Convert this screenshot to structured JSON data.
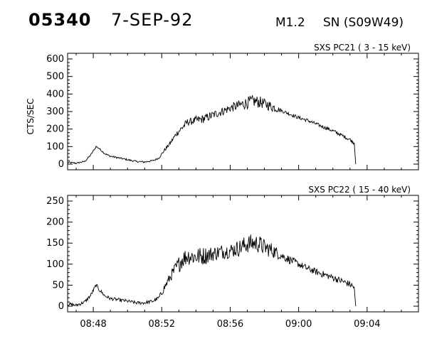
{
  "header": {
    "event_id": "05340",
    "date": "7-SEP-92",
    "flare_class": "M1.2",
    "location": "SN (S09W49)"
  },
  "chart_data": [
    {
      "type": "line",
      "title": "SXS PC21  (  3 - 15 keV)",
      "ylabel": "CTS/SEC",
      "xlabel": "",
      "xlim": [
        "08:46:30",
        "09:07:00"
      ],
      "ylim": [
        0,
        600
      ],
      "y_ticks": [
        "0",
        "100",
        "200",
        "300",
        "400",
        "500",
        "600"
      ],
      "grid": false,
      "series": [
        {
          "x": [
            "08:46:30",
            "08:47:00",
            "08:47:30",
            "08:47:50",
            "08:48:10",
            "08:48:20",
            "08:48:40",
            "08:49:00",
            "08:49:30",
            "08:50:00",
            "08:50:30",
            "08:51:00",
            "08:51:30",
            "08:51:50",
            "08:52:10",
            "08:52:30",
            "08:52:50",
            "08:53:10",
            "08:53:30",
            "08:53:50",
            "08:54:00",
            "08:54:30",
            "08:55:00",
            "08:55:30",
            "08:56:00",
            "08:56:30",
            "08:57:00",
            "08:57:20",
            "08:57:40",
            "08:58:00",
            "08:58:30",
            "08:59:00",
            "08:59:30",
            "09:00:00",
            "09:00:30",
            "09:01:00",
            "09:01:30",
            "09:02:00",
            "09:02:30",
            "09:03:00",
            "09:03:15",
            "09:03:20"
          ],
          "y": [
            10,
            5,
            15,
            50,
            100,
            90,
            60,
            45,
            35,
            25,
            15,
            12,
            20,
            35,
            80,
            120,
            170,
            205,
            240,
            245,
            250,
            260,
            280,
            300,
            320,
            335,
            350,
            360,
            355,
            345,
            325,
            305,
            285,
            265,
            250,
            230,
            210,
            190,
            165,
            140,
            120,
            0
          ],
          "noise": [
            5,
            5,
            5,
            5,
            5,
            5,
            5,
            5,
            5,
            5,
            5,
            5,
            5,
            5,
            10,
            10,
            15,
            20,
            20,
            20,
            25,
            25,
            25,
            25,
            25,
            30,
            35,
            35,
            35,
            30,
            30,
            10,
            10,
            10,
            10,
            10,
            10,
            10,
            10,
            10,
            10,
            0
          ]
        }
      ]
    },
    {
      "type": "line",
      "title": "SXS PC22  ( 15 - 40 keV)",
      "ylabel": "",
      "xlabel": "",
      "xlim": [
        "08:46:30",
        "09:07:00"
      ],
      "ylim": [
        0,
        250
      ],
      "x_ticks": [
        "08:48",
        "08:52",
        "08:56",
        "09:00",
        "09:04"
      ],
      "y_ticks": [
        "0",
        "50",
        "100",
        "150",
        "200",
        "250"
      ],
      "grid": false,
      "series": [
        {
          "x": [
            "08:46:30",
            "08:47:00",
            "08:47:30",
            "08:47:50",
            "08:48:10",
            "08:48:20",
            "08:48:40",
            "08:49:00",
            "08:49:30",
            "08:50:00",
            "08:50:30",
            "08:51:00",
            "08:51:30",
            "08:51:50",
            "08:52:10",
            "08:52:30",
            "08:52:50",
            "08:53:10",
            "08:53:30",
            "08:53:50",
            "08:54:00",
            "08:54:30",
            "08:55:00",
            "08:55:30",
            "08:56:00",
            "08:56:30",
            "08:57:00",
            "08:57:20",
            "08:57:40",
            "08:58:00",
            "08:58:30",
            "08:59:00",
            "08:59:30",
            "09:00:00",
            "09:00:30",
            "09:01:00",
            "09:01:30",
            "09:02:00",
            "09:02:30",
            "09:03:00",
            "09:03:15",
            "09:03:20"
          ],
          "y": [
            5,
            2,
            10,
            25,
            50,
            40,
            25,
            18,
            15,
            12,
            8,
            8,
            12,
            20,
            45,
            70,
            90,
            110,
            120,
            118,
            118,
            120,
            125,
            130,
            132,
            138,
            148,
            150,
            148,
            140,
            132,
            120,
            110,
            100,
            90,
            82,
            75,
            68,
            60,
            52,
            45,
            0
          ],
          "noise": [
            4,
            4,
            4,
            4,
            5,
            5,
            4,
            4,
            4,
            4,
            4,
            4,
            4,
            5,
            10,
            12,
            18,
            22,
            22,
            22,
            22,
            22,
            18,
            18,
            18,
            20,
            22,
            22,
            22,
            20,
            18,
            10,
            10,
            8,
            8,
            8,
            8,
            8,
            8,
            8,
            8,
            0
          ]
        }
      ]
    }
  ]
}
